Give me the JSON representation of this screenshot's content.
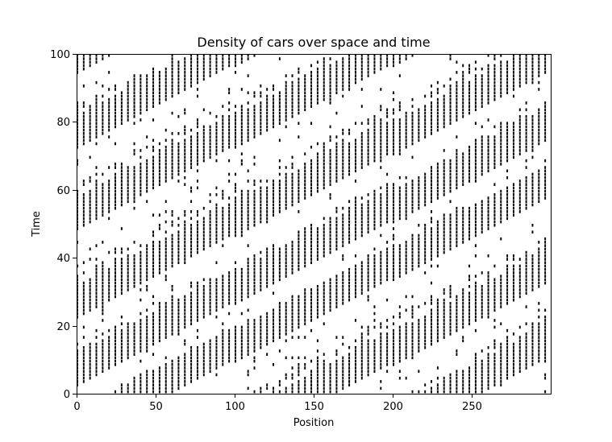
{
  "chart_data": {
    "type": "heatmap",
    "title": "Density of cars over space and time",
    "xlabel": "Position",
    "ylabel": "Time",
    "xlim": [
      0,
      300
    ],
    "ylim": [
      0,
      100
    ],
    "x_ticks": [
      0,
      50,
      100,
      150,
      200,
      250
    ],
    "y_ticks": [
      0,
      20,
      40,
      60,
      80,
      100
    ],
    "x_tick_labels": [
      "0",
      "50",
      "100",
      "150",
      "200",
      "250"
    ],
    "y_tick_labels": [
      "0",
      "20",
      "40",
      "60",
      "80",
      "100"
    ],
    "grid": false,
    "colormap": "binary",
    "cell_values": "occupied cell = 1 (black), empty = 0 (white)",
    "pattern": {
      "description": "cars drift rightward over time as diagonal streaks (slope ~4 position units per time step); dense jam bands propagate opposite to traffic",
      "car_speed_units_per_step": 4,
      "jam_band_slope_time_per_position": 0.24,
      "jam_band_intercepts_time": [
        -60,
        -38,
        -13,
        4,
        24,
        50,
        74,
        96
      ]
    }
  }
}
